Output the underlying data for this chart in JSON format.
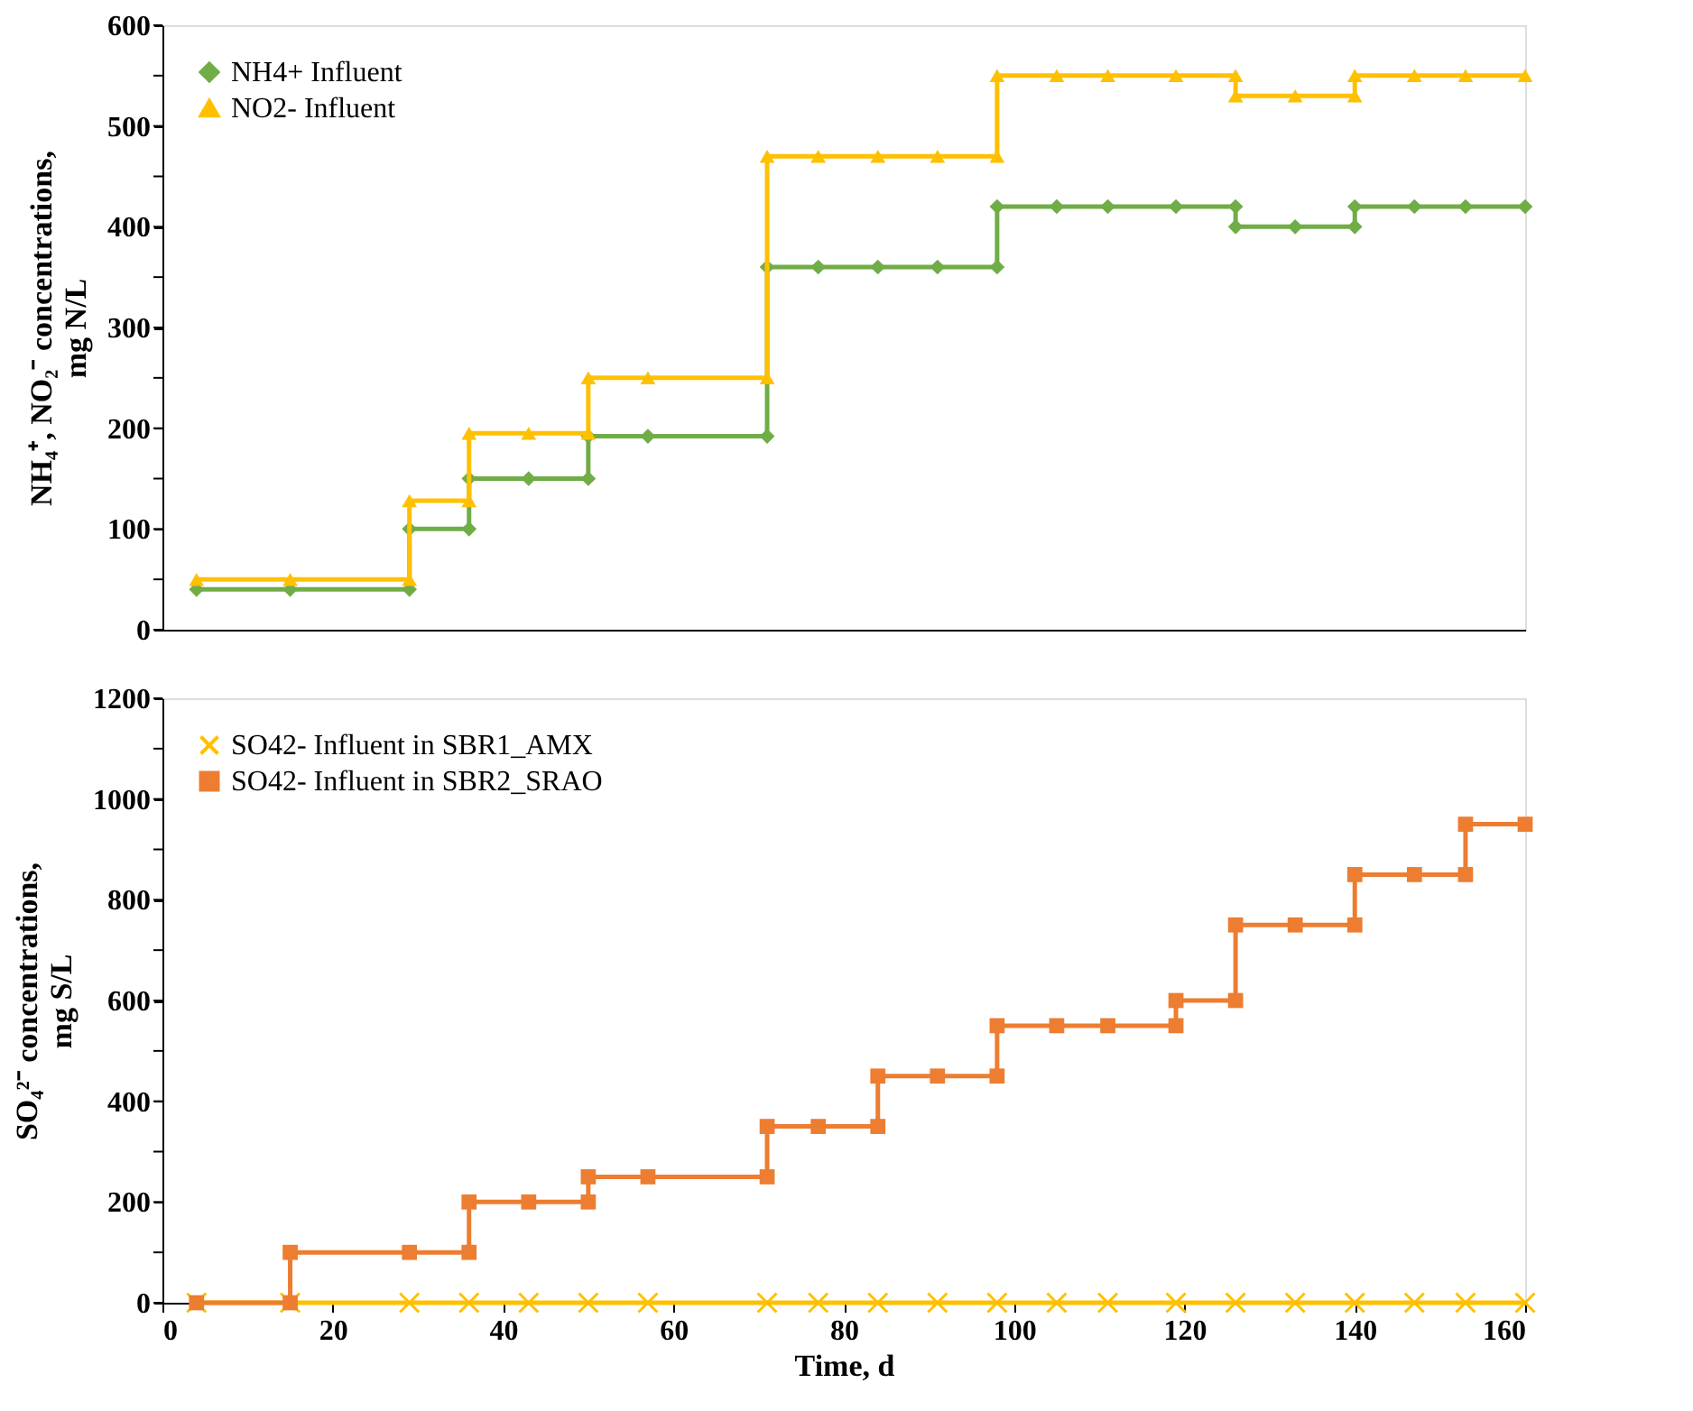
{
  "chart_data": [
    {
      "type": "line",
      "ylabel": "NH₄⁺, NO₂⁻ concentrations,\nmg N/L",
      "xlim": [
        0,
        160
      ],
      "ylim": [
        0,
        600
      ],
      "yticks": [
        0,
        {
          "value": 50,
          "label": null
        },
        100,
        {
          "value": 150,
          "label": null
        },
        200,
        {
          "value": 250,
          "label": null
        },
        300,
        {
          "value": 350,
          "label": null
        },
        400,
        {
          "value": 450,
          "label": null
        },
        500,
        {
          "value": 550,
          "label": null
        },
        600
      ],
      "tick_labels": "y",
      "grid": false,
      "legend": "top left",
      "line_style": "solid",
      "series": [
        {
          "name": "NH4+ Influent",
          "color": "#70ad47",
          "marker": "diamond",
          "x": [
            4,
            15,
            29,
            29,
            36,
            36,
            43,
            50,
            50,
            57,
            71,
            71,
            77,
            84,
            91,
            98,
            98,
            105,
            111,
            119,
            126,
            126,
            133,
            140,
            140,
            147,
            153,
            160
          ],
          "values": [
            40,
            40,
            40,
            100,
            100,
            150,
            150,
            150,
            192,
            192,
            192,
            360,
            360,
            360,
            360,
            360,
            420,
            420,
            420,
            420,
            420,
            400,
            400,
            400,
            420,
            420,
            420,
            420
          ]
        },
        {
          "name": "NO2- Influent",
          "color": "#ffc000",
          "marker": "triangle",
          "x": [
            4,
            15,
            29,
            29,
            36,
            36,
            43,
            50,
            50,
            57,
            71,
            71,
            77,
            84,
            91,
            98,
            98,
            105,
            111,
            119,
            126,
            126,
            133,
            140,
            140,
            147,
            153,
            160
          ],
          "values": [
            50,
            50,
            50,
            128,
            128,
            195,
            195,
            195,
            250,
            250,
            250,
            470,
            470,
            470,
            470,
            470,
            550,
            550,
            550,
            550,
            550,
            530,
            530,
            530,
            550,
            550,
            550,
            550
          ]
        }
      ]
    },
    {
      "type": "line",
      "xlabel": "Time, d",
      "ylabel": "SO₄²⁻ concentrations,\nmg S/L",
      "xlim": [
        0,
        160
      ],
      "xticks": [
        0,
        20,
        40,
        60,
        80,
        100,
        120,
        140,
        160
      ],
      "ylim": [
        0,
        1200
      ],
      "yticks": [
        0,
        {
          "value": 100,
          "label": null
        },
        200,
        {
          "value": 300,
          "label": null
        },
        400,
        {
          "value": 500,
          "label": null
        },
        600,
        {
          "value": 700,
          "label": null
        },
        800,
        {
          "value": 900,
          "label": null
        },
        1000,
        {
          "value": 1100,
          "label": null
        },
        1200
      ],
      "grid": false,
      "legend": "top left",
      "line_style": "solid",
      "series": [
        {
          "name": "SO42- Influent in SBR1_AMX",
          "color": "#ffc000",
          "marker": "cross",
          "x": [
            4,
            15,
            29,
            36,
            43,
            50,
            57,
            71,
            77,
            84,
            91,
            98,
            105,
            111,
            119,
            126,
            133,
            140,
            147,
            153,
            160
          ],
          "values": [
            0,
            0,
            0,
            0,
            0,
            0,
            0,
            0,
            0,
            0,
            0,
            0,
            0,
            0,
            0,
            0,
            0,
            0,
            0,
            0,
            0
          ]
        },
        {
          "name": "SO42- Influent in SBR2_SRAO",
          "color": "#ed7d31",
          "marker": "square",
          "x": [
            4,
            15,
            15,
            29,
            36,
            36,
            43,
            50,
            50,
            57,
            71,
            71,
            77,
            84,
            84,
            91,
            98,
            98,
            105,
            111,
            119,
            119,
            126,
            126,
            133,
            140,
            140,
            147,
            153,
            153,
            160
          ],
          "values": [
            0,
            0,
            100,
            100,
            100,
            200,
            200,
            200,
            250,
            250,
            250,
            350,
            350,
            350,
            450,
            450,
            450,
            550,
            550,
            550,
            550,
            600,
            600,
            750,
            750,
            750,
            850,
            850,
            850,
            950,
            950
          ]
        }
      ]
    }
  ]
}
